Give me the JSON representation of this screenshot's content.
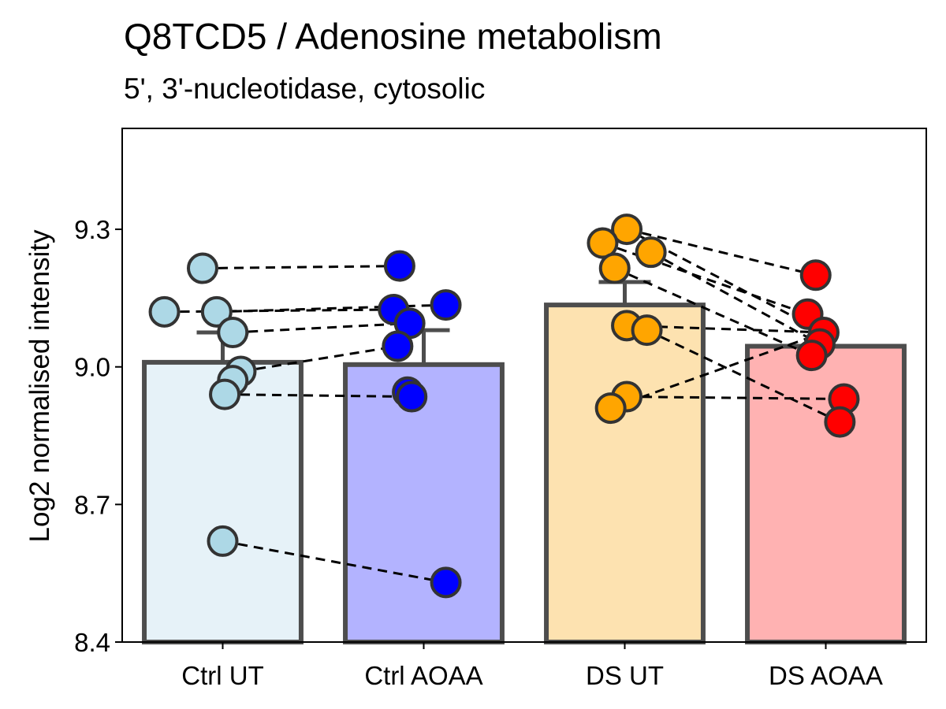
{
  "chart_data": {
    "type": "bar",
    "title": "Q8TCD5 / Adenosine metabolism",
    "subtitle": "5', 3'-nucleotidase, cytosolic",
    "xlabel": "",
    "ylabel": "Log2 normalised intensity",
    "ylim": [
      8.4,
      9.52
    ],
    "yticks": [
      8.4,
      8.7,
      9.0,
      9.3
    ],
    "ytick_labels": [
      "8.4",
      "8.7",
      "9.0",
      "9.3"
    ],
    "grid": false,
    "legend": "none",
    "categories": [
      "Ctrl UT",
      "Ctrl AOAA",
      "DS UT",
      "DS AOAA"
    ],
    "values": [
      9.01,
      9.005,
      9.135,
      9.045
    ],
    "error_upper": [
      9.075,
      9.08,
      9.185,
      9.045
    ],
    "bar_fill_colors": [
      "#e6f2f8",
      "#b3b3ff",
      "#fde2b0",
      "#ffb2b2"
    ],
    "point_colors": [
      "#add8e6",
      "#0000ff",
      "#ffa500",
      "#ff0000"
    ],
    "points": [
      [
        {
          "jitter": -0.1,
          "y": 9.215
        },
        {
          "jitter": -0.29,
          "y": 9.12
        },
        {
          "jitter": -0.03,
          "y": 9.12
        },
        {
          "jitter": 0.05,
          "y": 9.075
        },
        {
          "jitter": 0.09,
          "y": 8.99
        },
        {
          "jitter": 0.05,
          "y": 8.97
        },
        {
          "jitter": 0.01,
          "y": 8.94
        },
        {
          "jitter": 0.0,
          "y": 8.62
        }
      ],
      [
        {
          "jitter": -0.12,
          "y": 9.22
        },
        {
          "jitter": -0.15,
          "y": 9.125
        },
        {
          "jitter": 0.11,
          "y": 9.135
        },
        {
          "jitter": -0.07,
          "y": 9.095
        },
        {
          "jitter": -0.13,
          "y": 9.045
        },
        {
          "jitter": -0.08,
          "y": 8.945
        },
        {
          "jitter": -0.06,
          "y": 8.935
        },
        {
          "jitter": 0.11,
          "y": 8.53
        }
      ],
      [
        {
          "jitter": 0.01,
          "y": 9.3
        },
        {
          "jitter": -0.11,
          "y": 9.27
        },
        {
          "jitter": 0.13,
          "y": 9.25
        },
        {
          "jitter": -0.05,
          "y": 9.215
        },
        {
          "jitter": 0.01,
          "y": 9.09
        },
        {
          "jitter": 0.11,
          "y": 9.08
        },
        {
          "jitter": 0.01,
          "y": 8.935
        },
        {
          "jitter": -0.07,
          "y": 8.91
        }
      ],
      [
        {
          "jitter": -0.05,
          "y": 9.2
        },
        {
          "jitter": -0.09,
          "y": 9.115
        },
        {
          "jitter": -0.01,
          "y": 9.075
        },
        {
          "jitter": -0.03,
          "y": 9.05
        },
        {
          "jitter": -0.07,
          "y": 9.025
        },
        {
          "jitter": 0.09,
          "y": 8.93
        },
        {
          "jitter": 0.07,
          "y": 8.88
        }
      ]
    ],
    "paired_links": [
      {
        "from": [
          0,
          0
        ],
        "to": [
          1,
          0
        ]
      },
      {
        "from": [
          0,
          1
        ],
        "to": [
          1,
          1
        ]
      },
      {
        "from": [
          0,
          2
        ],
        "to": [
          1,
          2
        ]
      },
      {
        "from": [
          0,
          3
        ],
        "to": [
          1,
          3
        ]
      },
      {
        "from": [
          0,
          4
        ],
        "to": [
          1,
          4
        ]
      },
      {
        "from": [
          0,
          6
        ],
        "to": [
          1,
          6
        ]
      },
      {
        "from": [
          0,
          7
        ],
        "to": [
          1,
          7
        ]
      },
      {
        "from": [
          2,
          0
        ],
        "to": [
          3,
          0
        ]
      },
      {
        "from": [
          2,
          0
        ],
        "to": [
          3,
          2
        ]
      },
      {
        "from": [
          2,
          1
        ],
        "to": [
          3,
          1
        ]
      },
      {
        "from": [
          2,
          2
        ],
        "to": [
          3,
          3
        ]
      },
      {
        "from": [
          2,
          3
        ],
        "to": [
          3,
          4
        ]
      },
      {
        "from": [
          2,
          4
        ],
        "to": [
          3,
          2
        ]
      },
      {
        "from": [
          2,
          5
        ],
        "to": [
          3,
          6
        ]
      },
      {
        "from": [
          2,
          6
        ],
        "to": [
          3,
          5
        ]
      },
      {
        "from": [
          2,
          7
        ],
        "to": [
          3,
          2
        ]
      }
    ]
  }
}
